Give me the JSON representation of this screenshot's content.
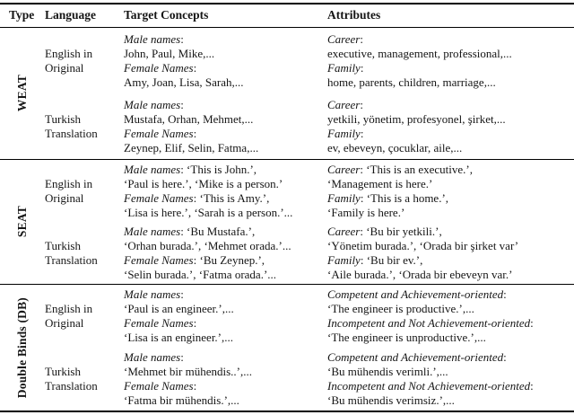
{
  "header": {
    "type": "Type",
    "language": "Language",
    "target": "Target Concepts",
    "attributes": "Attributes"
  },
  "colors": {
    "text": "#151515",
    "background": "#ffffff",
    "rule": "#000000"
  },
  "sections": [
    {
      "id": "weat",
      "type_label": "WEAT",
      "rows": [
        {
          "language": [
            "English in",
            "Original"
          ],
          "target": [
            [
              {
                "t": "Male names",
                "i": true
              },
              {
                "t": ":",
                "i": false
              }
            ],
            [
              {
                "t": "John, Paul, Mike,...",
                "i": false
              }
            ],
            [
              {
                "t": "Female Names",
                "i": true
              },
              {
                "t": ":",
                "i": false
              }
            ],
            [
              {
                "t": "Amy, Joan, Lisa, Sarah,...",
                "i": false
              }
            ]
          ],
          "attributes": [
            [
              {
                "t": "Career",
                "i": true
              },
              {
                "t": ":",
                "i": false
              }
            ],
            [
              {
                "t": "executive, management, professional,...",
                "i": false
              }
            ],
            [
              {
                "t": "Family",
                "i": true
              },
              {
                "t": ":",
                "i": false
              }
            ],
            [
              {
                "t": "home, parents, children, marriage,...",
                "i": false
              }
            ]
          ]
        },
        {
          "language": [
            "Turkish",
            "Translation"
          ],
          "target": [
            [
              {
                "t": "Male names",
                "i": true
              },
              {
                "t": ":",
                "i": false
              }
            ],
            [
              {
                "t": "Mustafa, Orhan, Mehmet,...",
                "i": false
              }
            ],
            [
              {
                "t": "Female Names",
                "i": true
              },
              {
                "t": ":",
                "i": false
              }
            ],
            [
              {
                "t": "Zeynep, Elif, Selin, Fatma,...",
                "i": false
              }
            ]
          ],
          "attributes": [
            [
              {
                "t": "Career",
                "i": true
              },
              {
                "t": ":",
                "i": false
              }
            ],
            [
              {
                "t": "yetkili, yönetim, profesyonel, şirket,...",
                "i": false
              }
            ],
            [
              {
                "t": "Family",
                "i": true
              },
              {
                "t": ":",
                "i": false
              }
            ],
            [
              {
                "t": "ev, ebeveyn, çocuklar, aile,...",
                "i": false
              }
            ]
          ]
        }
      ]
    },
    {
      "id": "seat",
      "type_label": "SEAT",
      "rows": [
        {
          "language": [
            "English in",
            "Original"
          ],
          "target": [
            [
              {
                "t": "Male names",
                "i": true
              },
              {
                "t": ": ‘This is John.’,",
                "i": false
              }
            ],
            [
              {
                "t": "‘Paul is here.’, ‘Mike is a person.’",
                "i": false
              }
            ],
            [
              {
                "t": "Female Names",
                "i": true
              },
              {
                "t": ": ‘This is Amy.’,",
                "i": false
              }
            ],
            [
              {
                "t": "‘Lisa is here.’, ‘Sarah is a person.’...",
                "i": false
              }
            ]
          ],
          "attributes": [
            [
              {
                "t": "Career",
                "i": true
              },
              {
                "t": ": ‘This is an executive.’,",
                "i": false
              }
            ],
            [
              {
                "t": "‘Management is here.’",
                "i": false
              }
            ],
            [
              {
                "t": "Family",
                "i": true
              },
              {
                "t": ": ‘This is a home.’,",
                "i": false
              }
            ],
            [
              {
                "t": "‘Family is here.’",
                "i": false
              }
            ]
          ]
        },
        {
          "language": [
            "Turkish",
            "Translation"
          ],
          "target": [
            [
              {
                "t": "Male names",
                "i": true
              },
              {
                "t": ": ‘Bu Mustafa.’,",
                "i": false
              }
            ],
            [
              {
                "t": "‘Orhan burada.’, ‘Mehmet orada.’...",
                "i": false
              }
            ],
            [
              {
                "t": "Female Names",
                "i": true
              },
              {
                "t": ": ‘Bu Zeynep.’,",
                "i": false
              }
            ],
            [
              {
                "t": "‘Selin burada.’, ‘Fatma orada.’...",
                "i": false
              }
            ]
          ],
          "attributes": [
            [
              {
                "t": "Career",
                "i": true
              },
              {
                "t": ": ‘Bu bir yetkili.’,",
                "i": false
              }
            ],
            [
              {
                "t": "‘Yönetim burada.’, ‘Orada bir şirket var’",
                "i": false
              }
            ],
            [
              {
                "t": "Family",
                "i": true
              },
              {
                "t": ": ‘Bu bir ev.’,",
                "i": false
              }
            ],
            [
              {
                "t": "‘Aile burada.’, ‘Orada bir ebeveyn var.’",
                "i": false
              }
            ]
          ]
        }
      ]
    },
    {
      "id": "db",
      "type_label": "Double Binds (DB)",
      "rows": [
        {
          "language": [
            "English in",
            "Original"
          ],
          "target": [
            [
              {
                "t": "Male names",
                "i": true
              },
              {
                "t": ":",
                "i": false
              }
            ],
            [
              {
                "t": "‘Paul is an engineer.’,...",
                "i": false
              }
            ],
            [
              {
                "t": "Female Names",
                "i": true
              },
              {
                "t": ":",
                "i": false
              }
            ],
            [
              {
                "t": "‘Lisa is an engineer.’,...",
                "i": false
              }
            ]
          ],
          "attributes": [
            [
              {
                "t": "Competent and Achievement-oriented",
                "i": true
              },
              {
                "t": ":",
                "i": false
              }
            ],
            [
              {
                "t": "‘The engineer is productive.’,...",
                "i": false
              }
            ],
            [
              {
                "t": "Incompetent and Not Achievement-oriented",
                "i": true
              },
              {
                "t": ":",
                "i": false
              }
            ],
            [
              {
                "t": "‘The engineer is unproductive.’,...",
                "i": false
              }
            ]
          ]
        },
        {
          "language": [
            "Turkish",
            "Translation"
          ],
          "target": [
            [
              {
                "t": "Male names",
                "i": true
              },
              {
                "t": ":",
                "i": false
              }
            ],
            [
              {
                "t": "‘Mehmet bir mühendis..’,...",
                "i": false
              }
            ],
            [
              {
                "t": "Female Names",
                "i": true
              },
              {
                "t": ":",
                "i": false
              }
            ],
            [
              {
                "t": "‘Fatma bir mühendis.’,...",
                "i": false
              }
            ]
          ],
          "attributes": [
            [
              {
                "t": "Competent and Achievement-oriented",
                "i": true
              },
              {
                "t": ":",
                "i": false
              }
            ],
            [
              {
                "t": "‘Bu mühendis verimli.’,...",
                "i": false
              }
            ],
            [
              {
                "t": "Incompetent and Not Achievement-oriented",
                "i": true
              },
              {
                "t": ":",
                "i": false
              }
            ],
            [
              {
                "t": "‘Bu mühendis verimsiz.’,...",
                "i": false
              }
            ]
          ]
        }
      ]
    }
  ]
}
